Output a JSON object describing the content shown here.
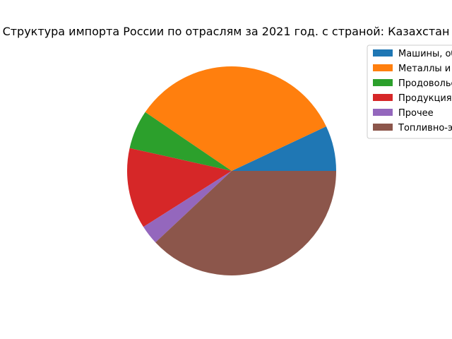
{
  "chart_data": {
    "type": "pie",
    "title": "Структура импорта России по отраслям за 2021 год. с страной: Казахстан",
    "legend_position": "top-right",
    "labels": [
      "Машины, оборудование и транспортные средства",
      "Металлы и изделия из них",
      "Продовольственные товары и сырье",
      "Продукция химической промышленности",
      "Прочее",
      "Топливно-энергетические товары"
    ],
    "values": [
      7.0,
      33.5,
      6.0,
      12.5,
      3.0,
      38.0
    ],
    "colors": [
      "#1f77b4",
      "#ff7f0e",
      "#2ca02c",
      "#d62728",
      "#9467bd",
      "#8c564b"
    ]
  }
}
